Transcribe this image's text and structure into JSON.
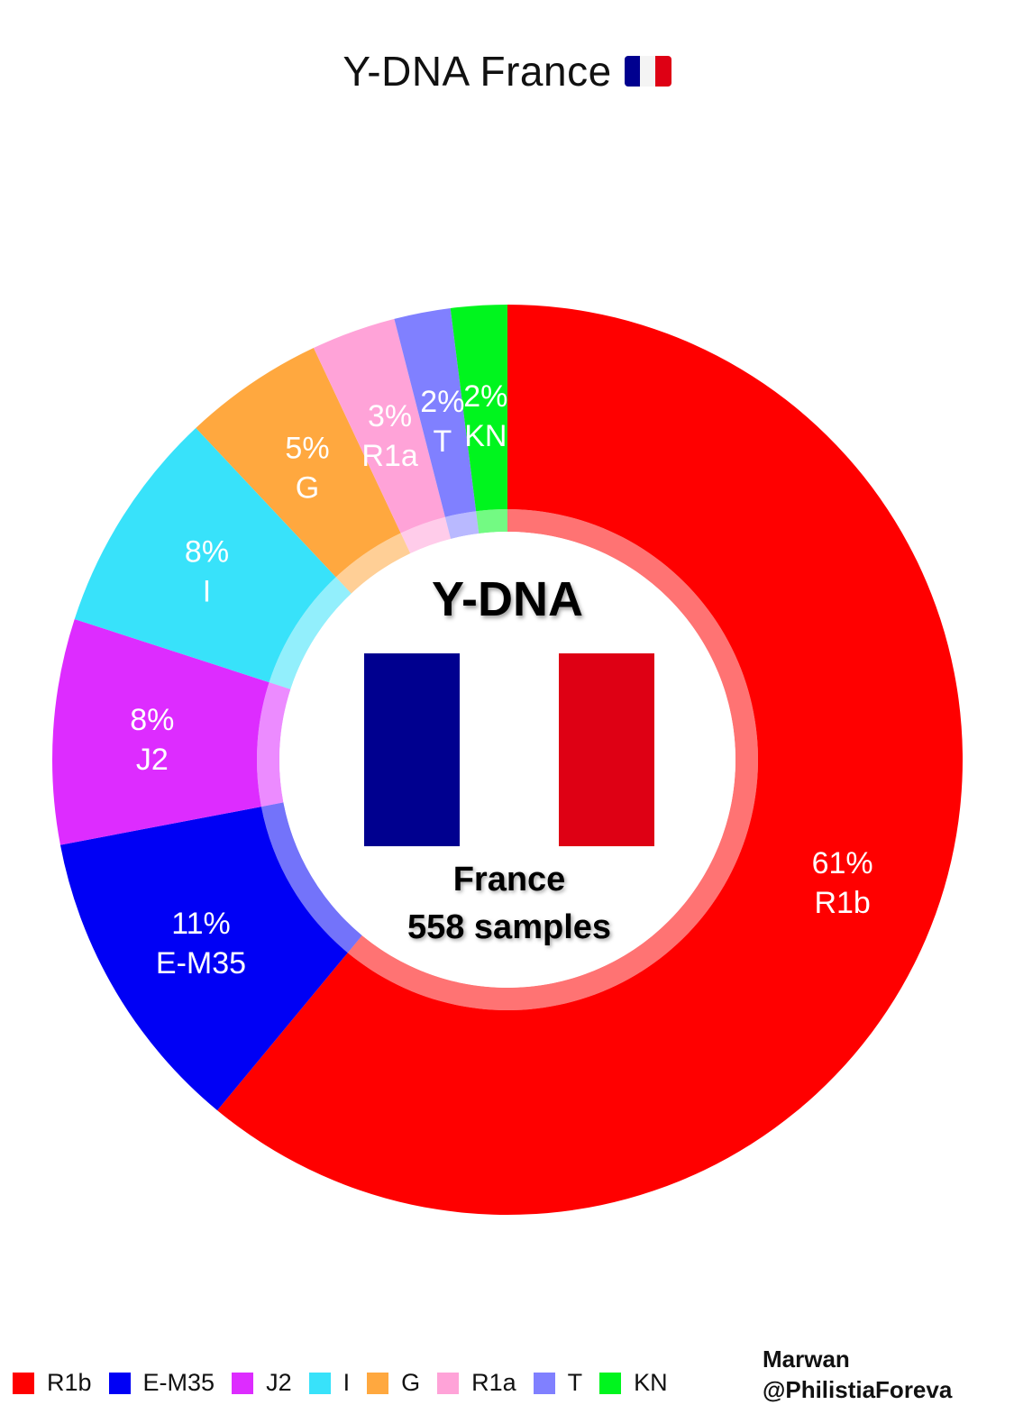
{
  "title": "Y-DNA France",
  "title_flag_icon": "france-flag-emoji",
  "center": {
    "heading": "Y-DNA",
    "country": "France",
    "samples": "558 samples",
    "flag_colors": [
      "#00008f",
      "#ffffff",
      "#de0014"
    ]
  },
  "chart_data": {
    "type": "pie",
    "subtype": "donut",
    "title": "Y-DNA France",
    "categories": [
      "R1b",
      "E-M35",
      "J2",
      "I",
      "G",
      "R1a",
      "T",
      "KN"
    ],
    "values": [
      61,
      11,
      8,
      8,
      5,
      3,
      2,
      2
    ],
    "value_labels": [
      "61%",
      "11%",
      "8%",
      "8%",
      "5%",
      "3%",
      "2%",
      "2%"
    ],
    "colors": [
      "#ff0000",
      "#0000f5",
      "#dd2cff",
      "#38e2fa",
      "#ffa83f",
      "#ffa3d8",
      "#8080ff",
      "#00f51e"
    ],
    "start": "12 o'clock",
    "direction": "clockwise",
    "legend_position": "bottom-left"
  },
  "legend": [
    "R1b",
    "E-M35",
    "J2",
    "I",
    "G",
    "R1a",
    "T",
    "KN"
  ],
  "credit": {
    "line1": "Marwan",
    "line2": "@PhilistiaForeva"
  }
}
